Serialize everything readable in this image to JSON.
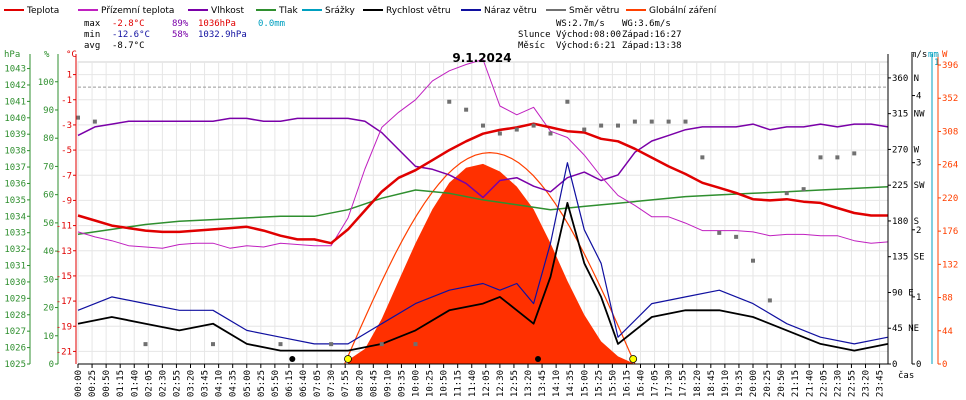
{
  "legend": [
    {
      "label": "Teplota",
      "color": "#e00000"
    },
    {
      "label": "Přízemní teplota",
      "color": "#c020c0"
    },
    {
      "label": "Vlhkost",
      "color": "#7a00a8"
    },
    {
      "label": "Tlak",
      "color": "#2f8f2f"
    },
    {
      "label": "Srážky",
      "color": "#00a0c0"
    },
    {
      "label": "Rychlost větru",
      "color": "#000000"
    },
    {
      "label": "Náraz větru",
      "color": "#1010a0"
    },
    {
      "label": "Směr větru",
      "color": "#707070"
    },
    {
      "label": "Globální záření",
      "color": "#ff4000"
    }
  ],
  "stats": {
    "max": {
      "label": "max",
      "temp": "-2.8°C",
      "hum": "89%",
      "press": "1036hPa",
      "rain": "0.0mm"
    },
    "min": {
      "label": "min",
      "temp": "-12.6°C",
      "hum": "58%",
      "press": "1032.9hPa"
    },
    "avg": {
      "label": "avg",
      "temp": "-8.7°C"
    },
    "ws": "WS:2.7m/s",
    "wg": "WG:3.6m/s",
    "sun": {
      "label": "Slunce",
      "rise": "Východ:08:00",
      "set": "Západ:16:27"
    },
    "moon": {
      "label": "Měsíc",
      "rise": "Východ:6:21",
      "set": "Západ:13:38"
    }
  },
  "title": "9.1.2024",
  "axis_units": {
    "hpa": "hPa",
    "pct": "%",
    "temp": "°C",
    "ms": "m/s",
    "mm": "mm",
    "w": "W"
  },
  "x_unit": "čas",
  "chart_data": {
    "type": "line",
    "title": "9.1.2024",
    "x_ticks": [
      "00:00",
      "00:25",
      "00:50",
      "01:15",
      "01:40",
      "02:05",
      "02:30",
      "02:55",
      "03:20",
      "03:45",
      "04:10",
      "04:35",
      "05:00",
      "05:25",
      "05:50",
      "06:15",
      "06:40",
      "07:05",
      "07:30",
      "07:55",
      "08:20",
      "08:45",
      "09:10",
      "09:35",
      "10:00",
      "10:25",
      "10:50",
      "11:15",
      "11:40",
      "12:05",
      "12:30",
      "12:55",
      "13:20",
      "13:45",
      "14:10",
      "14:35",
      "15:00",
      "15:25",
      "15:50",
      "16:15",
      "16:40",
      "17:05",
      "17:30",
      "17:55",
      "18:20",
      "18:45",
      "19:10",
      "19:35",
      "20:00",
      "20:25",
      "20:50",
      "21:15",
      "21:40",
      "22:05",
      "22:30",
      "22:55",
      "23:20",
      "23:45"
    ],
    "xlim": [
      0,
      24
    ],
    "axes": {
      "pressure": {
        "ticks": [
          "1025",
          "1026",
          "1027",
          "1028",
          "1029",
          "1030",
          "1031",
          "1032",
          "1033",
          "1034",
          "1035",
          "1036",
          "1037",
          "1038",
          "1039",
          "1040",
          "1041",
          "1042",
          "1043"
        ],
        "ylim": [
          1025,
          1043.4
        ]
      },
      "humidity": {
        "ticks": [
          "0",
          "10",
          "20",
          "30",
          "40",
          "50",
          "60",
          "70",
          "80",
          "90",
          "100"
        ],
        "ylim": [
          0,
          107
        ]
      },
      "temperature": {
        "ticks": [
          "-21",
          "-19",
          "-17",
          "-15",
          "-13",
          "-11",
          "-9",
          "-7",
          "-5",
          "-3",
          "-1",
          "1"
        ],
        "ylim": [
          -22,
          2
        ]
      },
      "wind_speed": {
        "ticks": [
          "0",
          "1",
          "2",
          "3",
          "4"
        ],
        "ylim": [
          0,
          4.5
        ]
      },
      "wind_dir": {
        "ticks": [
          "0",
          "45 NE",
          "90 E",
          "135 SE",
          "180 S",
          "225 SW",
          "270 W",
          "315 NW",
          "360 N"
        ],
        "ylim": [
          0,
          380
        ]
      },
      "rain": {
        "ticks": [
          "1"
        ]
      },
      "radiation": {
        "ticks": [
          "0",
          "44",
          "88",
          "132",
          "176",
          "220",
          "264",
          "308",
          "352",
          "396"
        ],
        "ylim": [
          0,
          400
        ]
      }
    },
    "series": [
      {
        "name": "Teplota",
        "axis": "temperature",
        "color": "#e00000",
        "x": [
          0,
          0.5,
          1,
          1.5,
          2,
          2.5,
          3,
          3.5,
          4,
          4.5,
          5,
          5.5,
          6,
          6.5,
          7,
          7.5,
          8,
          8.5,
          9,
          9.5,
          10,
          10.5,
          11,
          11.5,
          12,
          12.5,
          13,
          13.5,
          14,
          14.5,
          15,
          15.5,
          16,
          16.5,
          17,
          17.5,
          18,
          18.5,
          19,
          19.5,
          20,
          20.5,
          21,
          21.5,
          22,
          22.5,
          23,
          23.5,
          24
        ],
        "y": [
          -10.2,
          -10.6,
          -11,
          -11.2,
          -11.4,
          -11.5,
          -11.5,
          -11.4,
          -11.3,
          -11.2,
          -11.1,
          -11.4,
          -11.8,
          -12.1,
          -12.1,
          -12.4,
          -11.3,
          -9.8,
          -8.3,
          -7.2,
          -6.6,
          -5.8,
          -5,
          -4.3,
          -3.7,
          -3.4,
          -3.2,
          -2.9,
          -3.2,
          -3.5,
          -3.6,
          -4.1,
          -4.3,
          -4.9,
          -5.6,
          -6.3,
          -6.9,
          -7.6,
          -8,
          -8.4,
          -8.9,
          -9,
          -8.9,
          -9.1,
          -9.2,
          -9.6,
          -10,
          -10.2,
          -10.2
        ]
      },
      {
        "name": "Přízemní teplota",
        "axis": "temperature",
        "color": "#c020c0",
        "x": [
          0,
          0.5,
          1,
          1.5,
          2,
          2.5,
          3,
          3.5,
          4,
          4.5,
          5,
          5.5,
          6,
          6.5,
          7,
          7.5,
          8,
          8.5,
          9,
          9.5,
          10,
          10.5,
          11,
          11.5,
          12,
          12.5,
          13,
          13.5,
          14,
          14.5,
          15,
          15.5,
          16,
          16.5,
          17,
          17.5,
          18,
          18.5,
          19,
          19.5,
          20,
          20.5,
          21,
          21.5,
          22,
          22.5,
          23,
          23.5,
          24
        ],
        "y": [
          -11.5,
          -11.9,
          -12.2,
          -12.6,
          -12.7,
          -12.8,
          -12.5,
          -12.4,
          -12.4,
          -12.8,
          -12.6,
          -12.7,
          -12.4,
          -12.5,
          -12.6,
          -12.6,
          -10.4,
          -6.5,
          -3.2,
          -2,
          -1,
          0.5,
          1.3,
          1.8,
          2.2,
          -1.5,
          -2.2,
          -1.6,
          -3.5,
          -4,
          -5.4,
          -7.1,
          -8.6,
          -9.4,
          -10.3,
          -10.3,
          -10.8,
          -11.4,
          -11.4,
          -11.4,
          -11.5,
          -11.8,
          -11.7,
          -11.7,
          -11.8,
          -11.8,
          -12.2,
          -12.4,
          -12.3
        ]
      },
      {
        "name": "Vlhkost",
        "axis": "humidity",
        "color": "#7a00a8",
        "x": [
          0,
          0.5,
          1,
          1.5,
          2,
          2.5,
          3,
          3.5,
          4,
          4.5,
          5,
          5.5,
          6,
          6.5,
          7,
          7.5,
          8,
          8.5,
          9,
          9.5,
          10,
          10.5,
          11,
          11.5,
          12,
          12.5,
          13,
          13.5,
          14,
          14.5,
          15,
          15.5,
          16,
          16.5,
          17,
          17.5,
          18,
          18.5,
          19,
          19.5,
          20,
          20.5,
          21,
          21.5,
          22,
          22.5,
          23,
          23.5,
          24
        ],
        "y": [
          81,
          84,
          85,
          86,
          86,
          86,
          86,
          86,
          86,
          87,
          87,
          86,
          86,
          87,
          87,
          87,
          87,
          86,
          82,
          76,
          70,
          69,
          67,
          64,
          59,
          65,
          66,
          63,
          61,
          66,
          68,
          65,
          67,
          75,
          79,
          81,
          83,
          84,
          84,
          84,
          85,
          83,
          84,
          84,
          85,
          84,
          85,
          85,
          84
        ]
      },
      {
        "name": "Tlak",
        "axis": "pressure",
        "color": "#2f8f2f",
        "x": [
          0,
          1,
          2,
          3,
          4,
          5,
          6,
          7,
          8,
          9,
          10,
          11,
          12,
          13,
          14,
          15,
          16,
          17,
          18,
          19,
          20,
          21,
          22,
          23,
          24
        ],
        "y": [
          1032.9,
          1033.2,
          1033.5,
          1033.7,
          1033.8,
          1033.9,
          1034.0,
          1034.0,
          1034.4,
          1035.1,
          1035.6,
          1035.4,
          1035.0,
          1034.7,
          1034.4,
          1034.6,
          1034.8,
          1035.0,
          1035.2,
          1035.3,
          1035.4,
          1035.5,
          1035.6,
          1035.7,
          1035.8
        ]
      },
      {
        "name": "Rychlost větru",
        "axis": "wind_speed",
        "color": "#000000",
        "x": [
          0,
          1,
          2,
          3,
          4,
          5,
          6,
          7,
          8,
          9,
          10,
          11,
          12,
          12.5,
          13,
          13.5,
          14,
          14.5,
          15,
          15.5,
          16,
          17,
          18,
          19,
          20,
          21,
          22,
          23,
          24
        ],
        "y": [
          0.6,
          0.7,
          0.6,
          0.5,
          0.6,
          0.3,
          0.2,
          0.2,
          0.2,
          0.3,
          0.5,
          0.8,
          0.9,
          1.0,
          0.8,
          0.6,
          1.3,
          2.4,
          1.5,
          1.0,
          0.3,
          0.7,
          0.8,
          0.8,
          0.7,
          0.5,
          0.3,
          0.2,
          0.3
        ]
      },
      {
        "name": "Náraz větru",
        "axis": "wind_speed",
        "color": "#1010a0",
        "x": [
          0,
          1,
          2,
          3,
          4,
          5,
          6,
          7,
          8,
          9,
          10,
          11,
          12,
          12.5,
          13,
          13.5,
          14,
          14.5,
          15,
          15.5,
          16,
          17,
          18,
          19,
          20,
          21,
          22,
          23,
          24
        ],
        "y": [
          0.8,
          1.0,
          0.9,
          0.8,
          0.8,
          0.5,
          0.4,
          0.3,
          0.3,
          0.6,
          0.9,
          1.1,
          1.2,
          1.1,
          1.2,
          0.9,
          1.8,
          3.0,
          2.0,
          1.5,
          0.4,
          0.9,
          1.0,
          1.1,
          0.9,
          0.6,
          0.4,
          0.3,
          0.4
        ]
      },
      {
        "name": "Směr větru",
        "axis": "wind_dir",
        "color": "#707070",
        "x": [
          0,
          0.5,
          2,
          4,
          6,
          7.5,
          9,
          10,
          11,
          11.5,
          12,
          12.5,
          13,
          13.5,
          14,
          14.5,
          15,
          15.5,
          16,
          16.5,
          17,
          17.5,
          18,
          18.5,
          19,
          19.5,
          20,
          20.5,
          21,
          21.5,
          22,
          22.5,
          23
        ],
        "y": [
          310,
          305,
          25,
          25,
          25,
          25,
          25,
          25,
          330,
          320,
          300,
          290,
          295,
          300,
          290,
          330,
          295,
          300,
          300,
          305,
          305,
          305,
          305,
          260,
          165,
          160,
          130,
          80,
          215,
          220,
          260,
          260,
          265
        ]
      },
      {
        "name": "Globální záření",
        "axis": "radiation",
        "color": "#ff4000",
        "x": [
          8,
          8.5,
          9,
          9.5,
          10,
          10.5,
          11,
          11.5,
          12,
          12.5,
          13,
          13.5,
          14,
          14.5,
          15,
          15.5,
          16,
          16.5
        ],
        "y": [
          5,
          20,
          60,
          110,
          160,
          205,
          240,
          260,
          265,
          255,
          235,
          205,
          160,
          110,
          65,
          30,
          10,
          0
        ]
      }
    ]
  }
}
